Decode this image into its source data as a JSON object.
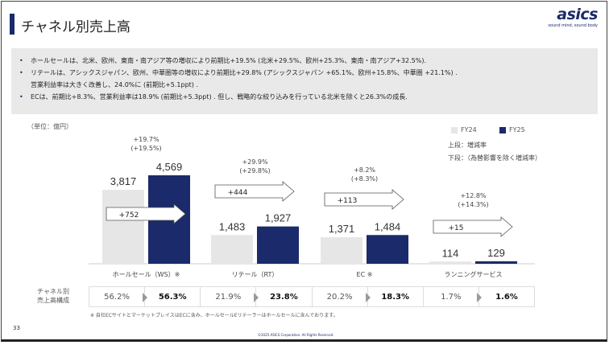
{
  "header": {
    "title": "チャネル別売上高",
    "logo": "asics",
    "logo_tagline": "sound mind, sound body"
  },
  "summary": [
    "ホールセールは、北米、欧州、東南・南アジア等の増収により前期比+19.5% (北米+29.5%、欧州+25.3%、東南・南アジア+32.5%).",
    "リテールは、アシックスジャパン、欧州、中華圏等の増収により前期比+29.8% (アシックスジャパン +65.1%、欧州+15.8%、中華圏 +21.1%) .",
    "営業利益率は大きく改善し、24.0%に (前期比+5.1ppt) .",
    "ECは、前期比+8.3%、営業利益率は18.9% (前期比+5.3ppt) . 但し、戦略的な絞り込みを行っている北米を除くと26.3%の成長."
  ],
  "chart_data": {
    "type": "bar",
    "unit": "（単位：億円）",
    "categories": [
      "ホールセール（WS）※",
      "リテール（RT）",
      "EC ※",
      "ランニングサービス"
    ],
    "series": [
      {
        "name": "FY24",
        "color": "#e6e6e6",
        "values": [
          3817,
          1483,
          1371,
          114
        ]
      },
      {
        "name": "FY25",
        "color": "#1b2a6b",
        "values": [
          4569,
          1927,
          1484,
          129
        ]
      }
    ],
    "changes": [
      "+752",
      "+444",
      "+113",
      "+15"
    ],
    "growth": [
      "+19.7%",
      "+29.9%",
      "+8.2%",
      "+12.8%"
    ],
    "growth_fx_adjusted": [
      "(+19.5%)",
      "(+29.8%)",
      "(+8.3%)",
      "(+14.3%)"
    ],
    "legend_placement": "top-right",
    "notes": [
      "上段：増減率",
      "下段：（為替影響を除く増減率）"
    ]
  },
  "share": {
    "label_line1": "チャネル別",
    "label_line2": "売上高構成",
    "pairs": [
      [
        "56.2%",
        "56.3%"
      ],
      [
        "21.9%",
        "23.8%"
      ],
      [
        "20.2%",
        "18.3%"
      ],
      [
        "1.7%",
        "1.6%"
      ]
    ]
  },
  "footnote": "※ 自社ECサイトとマーケットプレイスはECに含み、ホールセールEリテーラーはホールセールに含んでおります。",
  "page_number": "33",
  "copyright": "©2025 ASICS Corporation. All Rights Reserved."
}
